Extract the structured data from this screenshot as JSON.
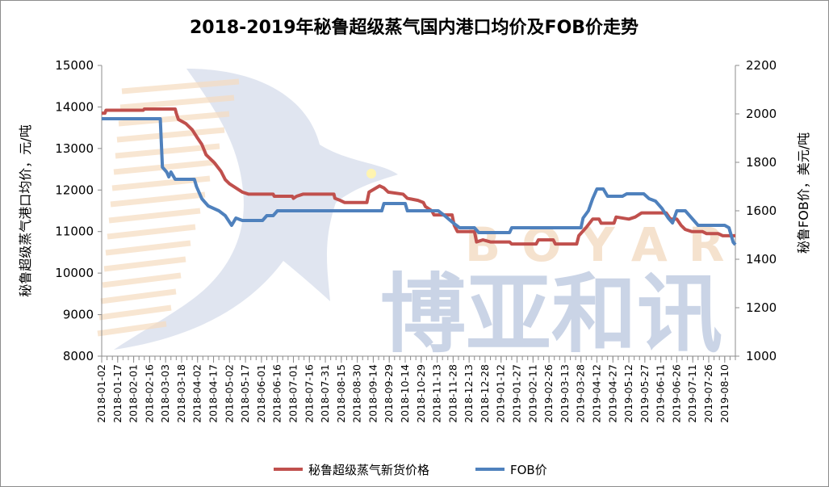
{
  "chart_data": {
    "type": "line",
    "title": "2018-2019年秘鲁超级蒸气国内港口均价及FOB价走势",
    "ylabel_left": "秘鲁超级蒸气港口均价，元/吨",
    "ylabel_right": "秘鲁FOB价，美元/吨",
    "ylim_left": [
      8000,
      15000
    ],
    "ylim_right": [
      1000,
      2200
    ],
    "yticks_left": [
      "8000",
      "9000",
      "10000",
      "11000",
      "12000",
      "13000",
      "14000",
      "15000"
    ],
    "yticks_right": [
      "1000",
      "1200",
      "1400",
      "1600",
      "1800",
      "2000",
      "2200"
    ],
    "x_start": "2018-01-02",
    "x_end": "2019-08-20",
    "x_ticks": [
      "2018-01-02",
      "2018-01-17",
      "2018-02-01",
      "2018-02-16",
      "2018-03-03",
      "2018-03-18",
      "2018-04-02",
      "2018-04-17",
      "2018-05-02",
      "2018-05-17",
      "2018-06-01",
      "2018-06-16",
      "2018-07-01",
      "2018-07-16",
      "2018-07-31",
      "2018-08-15",
      "2018-08-30",
      "2018-09-14",
      "2018-09-29",
      "2018-10-14",
      "2018-10-29",
      "2018-11-13",
      "2018-11-28",
      "2018-12-13",
      "2018-12-28",
      "2019-01-12",
      "2019-01-27",
      "2019-02-11",
      "2019-02-26",
      "2019-03-13",
      "2019-03-28",
      "2019-04-12",
      "2019-04-27",
      "2019-05-12",
      "2019-05-27",
      "2019-06-11",
      "2019-06-26",
      "2019-07-11",
      "2019-07-26",
      "2019-08-10"
    ],
    "grid": false,
    "legend_position": "bottom",
    "series": [
      {
        "name": "秘鲁超级蒸气新货价格",
        "axis": "left",
        "color": "#c0504d",
        "points": [
          [
            "2018-01-02",
            13850
          ],
          [
            "2018-01-05",
            13850
          ],
          [
            "2018-01-06",
            13920
          ],
          [
            "2018-02-10",
            13920
          ],
          [
            "2018-02-11",
            13950
          ],
          [
            "2018-03-12",
            13950
          ],
          [
            "2018-03-13",
            13850
          ],
          [
            "2018-03-15",
            13700
          ],
          [
            "2018-03-22",
            13600
          ],
          [
            "2018-03-28",
            13450
          ],
          [
            "2018-04-02",
            13250
          ],
          [
            "2018-04-06",
            13100
          ],
          [
            "2018-04-10",
            12850
          ],
          [
            "2018-04-14",
            12750
          ],
          [
            "2018-04-18",
            12650
          ],
          [
            "2018-04-24",
            12450
          ],
          [
            "2018-04-28",
            12250
          ],
          [
            "2018-05-02",
            12150
          ],
          [
            "2018-05-08",
            12050
          ],
          [
            "2018-05-14",
            11950
          ],
          [
            "2018-05-20",
            11900
          ],
          [
            "2018-06-12",
            11900
          ],
          [
            "2018-06-13",
            11850
          ],
          [
            "2018-06-30",
            11850
          ],
          [
            "2018-07-01",
            11800
          ],
          [
            "2018-07-04",
            11850
          ],
          [
            "2018-07-10",
            11900
          ],
          [
            "2018-08-08",
            11900
          ],
          [
            "2018-08-09",
            11800
          ],
          [
            "2018-08-14",
            11750
          ],
          [
            "2018-08-18",
            11700
          ],
          [
            "2018-09-08",
            11700
          ],
          [
            "2018-09-10",
            11950
          ],
          [
            "2018-09-20",
            12100
          ],
          [
            "2018-09-24",
            12050
          ],
          [
            "2018-09-28",
            11950
          ],
          [
            "2018-10-12",
            11900
          ],
          [
            "2018-10-16",
            11800
          ],
          [
            "2018-10-26",
            11750
          ],
          [
            "2018-10-31",
            11700
          ],
          [
            "2018-11-02",
            11600
          ],
          [
            "2018-11-08",
            11500
          ],
          [
            "2018-11-10",
            11400
          ],
          [
            "2018-11-27",
            11400
          ],
          [
            "2018-11-29",
            11150
          ],
          [
            "2018-12-02",
            11000
          ],
          [
            "2018-12-18",
            11000
          ],
          [
            "2018-12-20",
            10750
          ],
          [
            "2018-12-26",
            10800
          ],
          [
            "2019-01-02",
            10750
          ],
          [
            "2019-01-20",
            10750
          ],
          [
            "2019-01-22",
            10700
          ],
          [
            "2019-02-14",
            10700
          ],
          [
            "2019-02-16",
            10800
          ],
          [
            "2019-03-02",
            10800
          ],
          [
            "2019-03-04",
            10700
          ],
          [
            "2019-03-24",
            10700
          ],
          [
            "2019-03-26",
            10900
          ],
          [
            "2019-04-02",
            11100
          ],
          [
            "2019-04-08",
            11300
          ],
          [
            "2019-04-14",
            11300
          ],
          [
            "2019-04-16",
            11200
          ],
          [
            "2019-04-28",
            11200
          ],
          [
            "2019-04-30",
            11350
          ],
          [
            "2019-05-12",
            11300
          ],
          [
            "2019-05-18",
            11350
          ],
          [
            "2019-05-24",
            11450
          ],
          [
            "2019-06-16",
            11450
          ],
          [
            "2019-06-20",
            11300
          ],
          [
            "2019-06-26",
            11300
          ],
          [
            "2019-06-30",
            11150
          ],
          [
            "2019-07-04",
            11050
          ],
          [
            "2019-07-10",
            11000
          ],
          [
            "2019-07-20",
            11000
          ],
          [
            "2019-07-24",
            10950
          ],
          [
            "2019-08-04",
            10950
          ],
          [
            "2019-08-08",
            10900
          ],
          [
            "2019-08-20",
            10900
          ]
        ]
      },
      {
        "name": "FOB价",
        "axis": "right",
        "color": "#4f81bd",
        "points": [
          [
            "2018-01-02",
            1980
          ],
          [
            "2018-02-26",
            1980
          ],
          [
            "2018-02-28",
            1780
          ],
          [
            "2018-03-04",
            1760
          ],
          [
            "2018-03-06",
            1740
          ],
          [
            "2018-03-08",
            1760
          ],
          [
            "2018-03-12",
            1730
          ],
          [
            "2018-03-30",
            1730
          ],
          [
            "2018-04-01",
            1700
          ],
          [
            "2018-04-06",
            1650
          ],
          [
            "2018-04-12",
            1620
          ],
          [
            "2018-04-22",
            1600
          ],
          [
            "2018-04-28",
            1580
          ],
          [
            "2018-05-04",
            1540
          ],
          [
            "2018-05-08",
            1570
          ],
          [
            "2018-05-14",
            1560
          ],
          [
            "2018-06-02",
            1560
          ],
          [
            "2018-06-06",
            1580
          ],
          [
            "2018-06-12",
            1580
          ],
          [
            "2018-06-16",
            1600
          ],
          [
            "2018-09-22",
            1600
          ],
          [
            "2018-09-24",
            1630
          ],
          [
            "2018-10-14",
            1630
          ],
          [
            "2018-10-16",
            1600
          ],
          [
            "2018-11-10",
            1600
          ],
          [
            "2018-11-14",
            1600
          ],
          [
            "2018-11-20",
            1580
          ],
          [
            "2018-11-28",
            1550
          ],
          [
            "2018-12-04",
            1530
          ],
          [
            "2018-12-18",
            1530
          ],
          [
            "2018-12-22",
            1510
          ],
          [
            "2019-01-20",
            1510
          ],
          [
            "2019-01-22",
            1530
          ],
          [
            "2019-03-28",
            1530
          ],
          [
            "2019-03-30",
            1570
          ],
          [
            "2019-04-04",
            1600
          ],
          [
            "2019-04-08",
            1650
          ],
          [
            "2019-04-12",
            1690
          ],
          [
            "2019-04-18",
            1690
          ],
          [
            "2019-04-22",
            1660
          ],
          [
            "2019-05-06",
            1660
          ],
          [
            "2019-05-10",
            1670
          ],
          [
            "2019-05-26",
            1670
          ],
          [
            "2019-05-31",
            1650
          ],
          [
            "2019-06-06",
            1640
          ],
          [
            "2019-06-12",
            1610
          ],
          [
            "2019-06-18",
            1570
          ],
          [
            "2019-06-22",
            1550
          ],
          [
            "2019-06-26",
            1600
          ],
          [
            "2019-07-04",
            1600
          ],
          [
            "2019-07-08",
            1580
          ],
          [
            "2019-07-12",
            1560
          ],
          [
            "2019-07-16",
            1540
          ],
          [
            "2019-08-10",
            1540
          ],
          [
            "2019-08-14",
            1530
          ],
          [
            "2019-08-18",
            1470
          ],
          [
            "2019-08-20",
            1460
          ]
        ]
      }
    ]
  },
  "watermark": {
    "text_cn": "博亚和讯",
    "text_en": "BOYAR"
  }
}
